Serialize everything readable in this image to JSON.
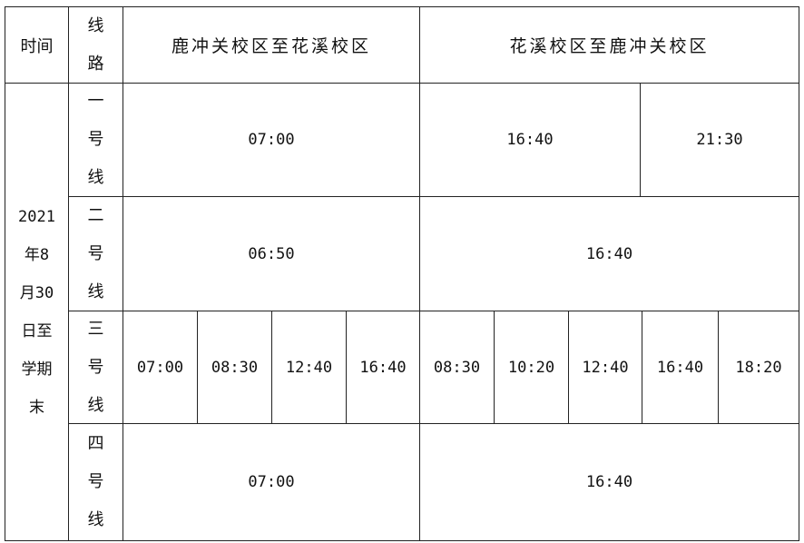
{
  "header": {
    "time": "时间",
    "line": "线路",
    "dir1": "鹿冲关校区至花溪校区",
    "dir2": "花溪校区至鹿冲关校区"
  },
  "period": "2021年8月30日至学期末",
  "lines": [
    {
      "name": "一号线",
      "outbound": [
        "07:00"
      ],
      "inbound": [
        "16:40",
        "21:30"
      ]
    },
    {
      "name": "二号线",
      "outbound": [
        "06:50"
      ],
      "inbound": [
        "16:40"
      ]
    },
    {
      "name": "三号线",
      "outbound": [
        "07:00",
        "08:30",
        "12:40",
        "16:40"
      ],
      "inbound": [
        "08:30",
        "10:20",
        "12:40",
        "16:40",
        "18:20"
      ]
    },
    {
      "name": "四号线",
      "outbound": [
        "07:00"
      ],
      "inbound": [
        "16:40"
      ]
    }
  ]
}
